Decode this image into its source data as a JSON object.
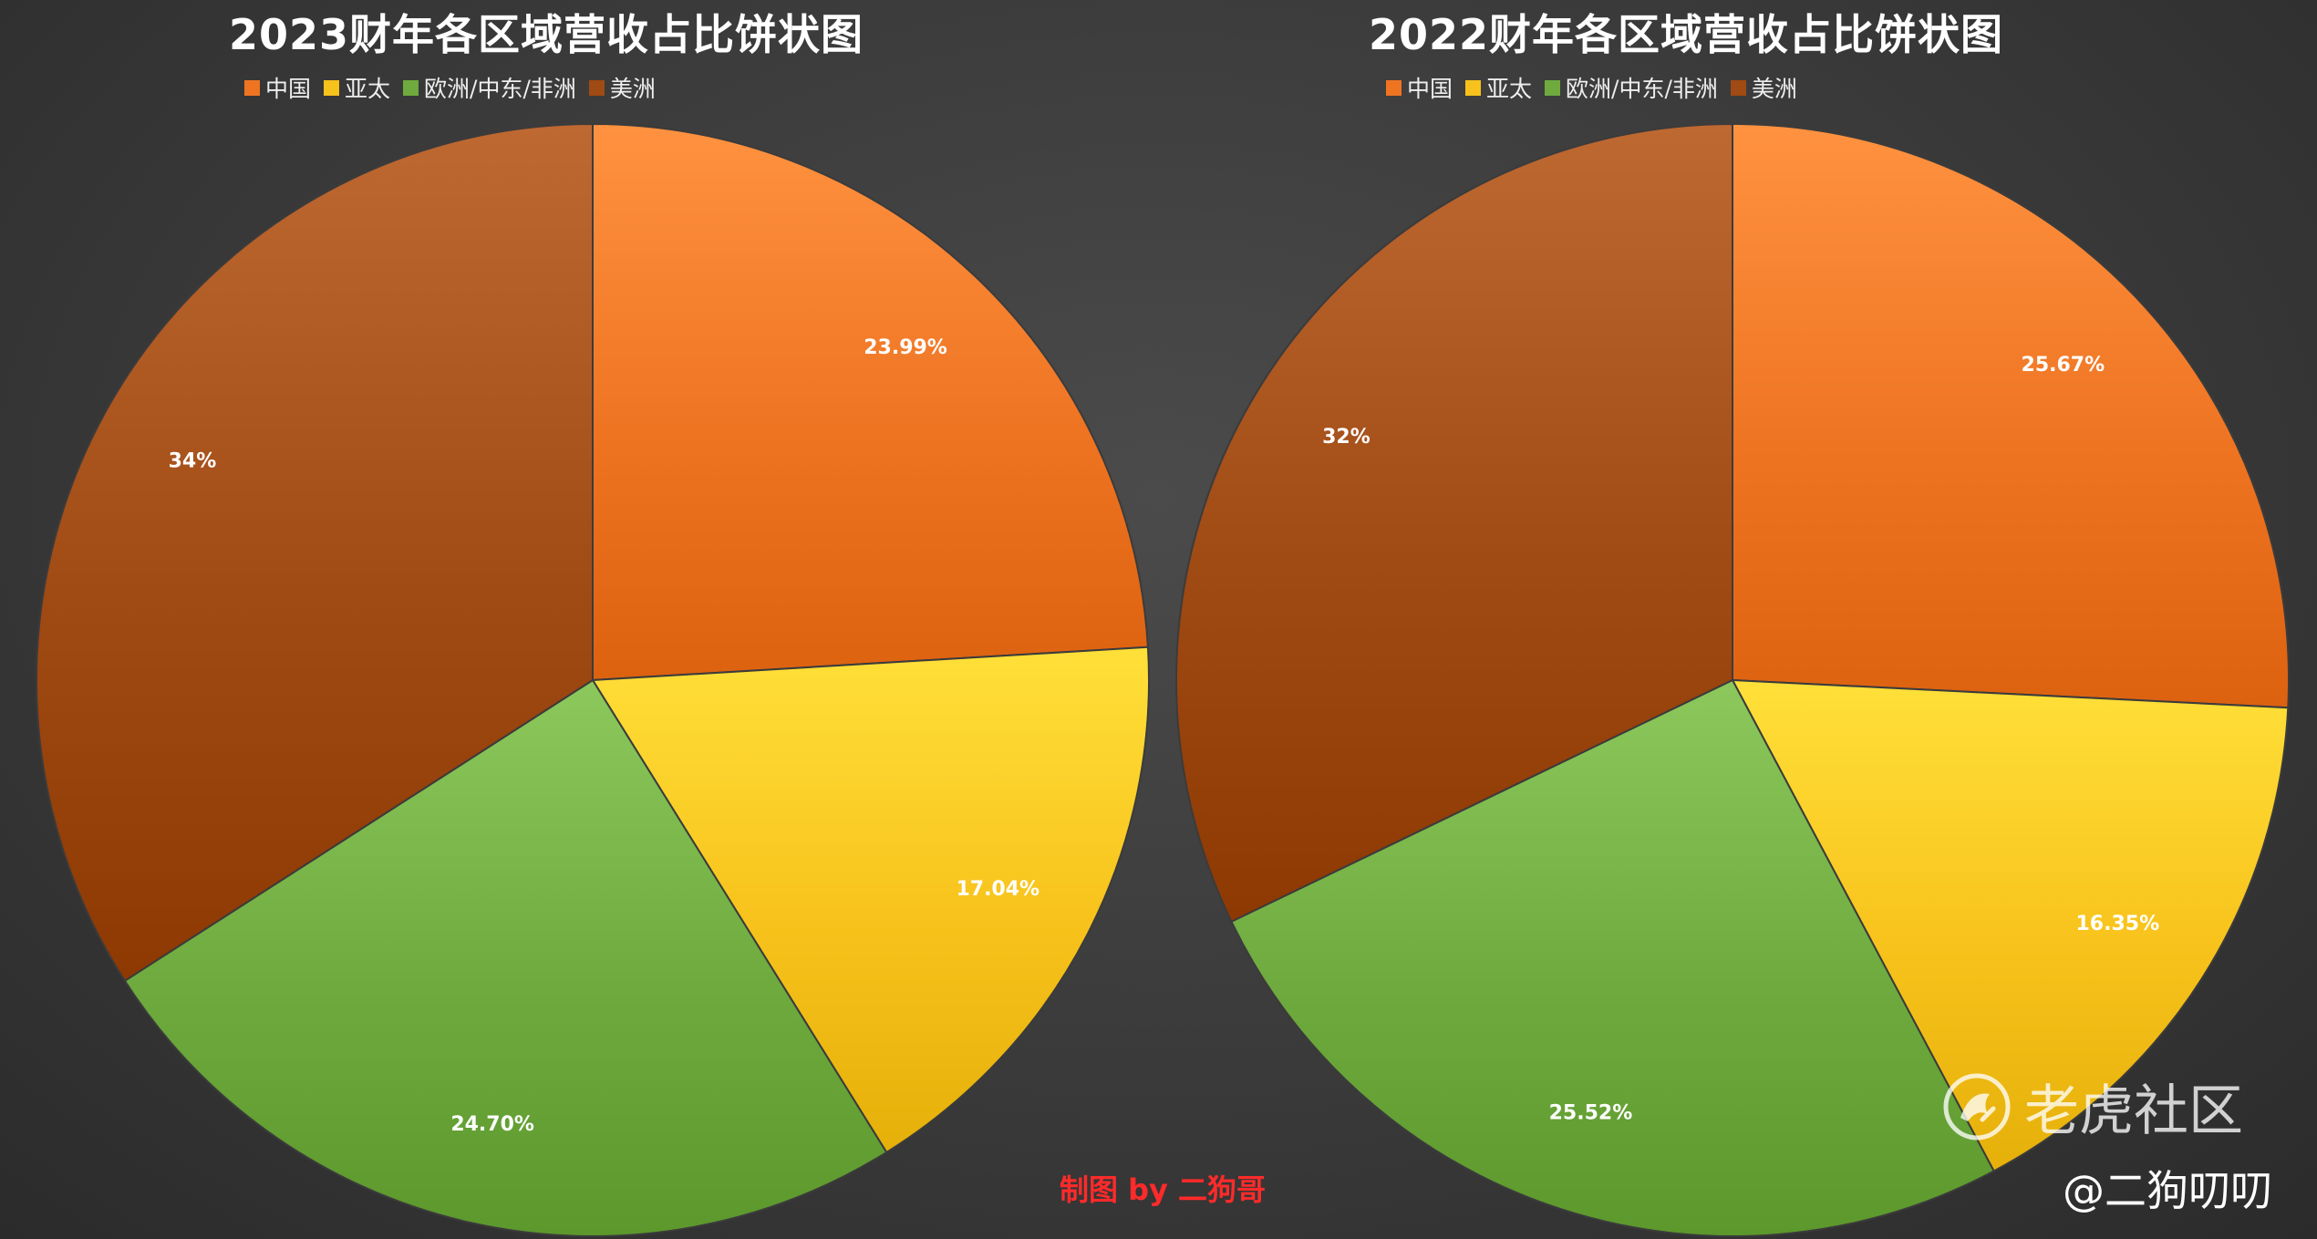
{
  "colors": {
    "中国": "#ee7422",
    "亚太": "#f7c21b",
    "欧洲/中东/非洲": "#6eaa3e",
    "美洲": "#a04a14"
  },
  "chart_data": [
    {
      "type": "pie",
      "title": "2023财年各区域营收占比饼状图",
      "legend": [
        "中国",
        "亚太",
        "欧洲/中东/非洲",
        "美洲"
      ],
      "legend_position": "top",
      "slices": [
        {
          "name": "中国",
          "value": 23.99,
          "label": "23.99%"
        },
        {
          "name": "亚太",
          "value": 17.04,
          "label": "17.04%"
        },
        {
          "name": "欧洲/中东/非洲",
          "value": 24.7,
          "label": "24.70%"
        },
        {
          "name": "美洲",
          "value": 34,
          "label": "34%"
        }
      ]
    },
    {
      "type": "pie",
      "title": "2022财年各区域营收占比饼状图",
      "legend": [
        "中国",
        "亚太",
        "欧洲/中东/非洲",
        "美洲"
      ],
      "legend_position": "top",
      "slices": [
        {
          "name": "中国",
          "value": 25.67,
          "label": "25.67%"
        },
        {
          "name": "亚太",
          "value": 16.35,
          "label": "16.35%"
        },
        {
          "name": "欧洲/中东/非洲",
          "value": 25.52,
          "label": "25.52%"
        },
        {
          "name": "美洲",
          "value": 32,
          "label": "32%"
        }
      ]
    }
  ],
  "credit": "制图 by 二狗哥",
  "watermark": "老虎社区",
  "handle": "@二狗叨叨"
}
